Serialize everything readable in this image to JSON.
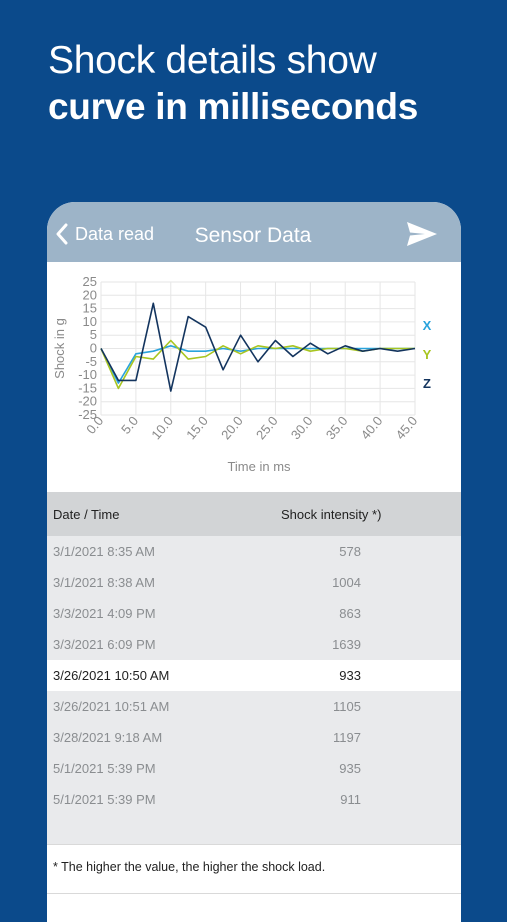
{
  "headline": {
    "line1": "Shock details show",
    "line2": "curve in milliseconds"
  },
  "navbar": {
    "back_label": "Data read",
    "title": "Sensor Data"
  },
  "chart_data": {
    "type": "line",
    "xlabel": "Time in ms",
    "ylabel": "Shock in g",
    "xlim": [
      0,
      45
    ],
    "ylim": [
      -25,
      25
    ],
    "xticks": [
      "0.0",
      "5.0",
      "10.0",
      "15.0",
      "20.0",
      "25.0",
      "30.0",
      "35.0",
      "40.0",
      "45.0"
    ],
    "yticks": [
      "25",
      "20",
      "15",
      "10",
      "5",
      "0",
      "-5",
      "-10",
      "-15",
      "-20",
      "-25"
    ],
    "grid": true,
    "legend": "right",
    "series": [
      {
        "name": "X",
        "color": "#29a3dc",
        "x": [
          0,
          2.5,
          5,
          7.5,
          10,
          12.5,
          15,
          17.5,
          20,
          22.5,
          25,
          27.5,
          30,
          32.5,
          35,
          37.5,
          40,
          42.5,
          45
        ],
        "y": [
          0,
          -13,
          -2,
          -1,
          1,
          -1,
          -1,
          0,
          -1,
          0,
          0,
          0,
          0,
          0,
          0,
          0,
          0,
          0,
          0
        ]
      },
      {
        "name": "Y",
        "color": "#a8c520",
        "x": [
          0,
          2.5,
          5,
          7.5,
          10,
          12.5,
          15,
          17.5,
          20,
          22.5,
          25,
          27.5,
          30,
          32.5,
          35,
          37.5,
          40,
          42.5,
          45
        ],
        "y": [
          0,
          -15,
          -3,
          -4,
          3,
          -4,
          -3,
          1,
          -2,
          1,
          0,
          1,
          -1,
          0,
          0,
          -1,
          0,
          0,
          0
        ]
      },
      {
        "name": "Z",
        "color": "#13345e",
        "x": [
          0,
          2.5,
          5,
          7.5,
          10,
          12.5,
          15,
          17.5,
          20,
          22.5,
          25,
          27.5,
          30,
          32.5,
          35,
          37.5,
          40,
          42.5,
          45
        ],
        "y": [
          0,
          -12,
          -12,
          17,
          -16,
          12,
          8,
          -8,
          5,
          -5,
          3,
          -3,
          2,
          -2,
          1,
          -1,
          0,
          -1,
          0
        ]
      }
    ]
  },
  "table": {
    "col_date": "Date / Time",
    "col_intensity": "Shock intensity *)",
    "rows": [
      {
        "date": "3/1/2021 8:35 AM",
        "value": "578",
        "selected": false
      },
      {
        "date": "3/1/2021 8:38 AM",
        "value": "1004",
        "selected": false
      },
      {
        "date": "3/3/2021 4:09 PM",
        "value": "863",
        "selected": false
      },
      {
        "date": "3/3/2021 6:09 PM",
        "value": "1639",
        "selected": false
      },
      {
        "date": "3/26/2021 10:50 AM",
        "value": "933",
        "selected": true
      },
      {
        "date": "3/26/2021 10:51 AM",
        "value": "1105",
        "selected": false
      },
      {
        "date": "3/28/2021 9:18 AM",
        "value": "1197",
        "selected": false
      },
      {
        "date": "5/1/2021 5:39 PM",
        "value": "935",
        "selected": false
      },
      {
        "date": "5/1/2021 5:39 PM",
        "value": "911",
        "selected": false
      }
    ]
  },
  "footnote": "* The higher the value, the higher the shock load.",
  "icons": {
    "back": "chevron-left-icon",
    "send": "paper-plane-icon"
  }
}
